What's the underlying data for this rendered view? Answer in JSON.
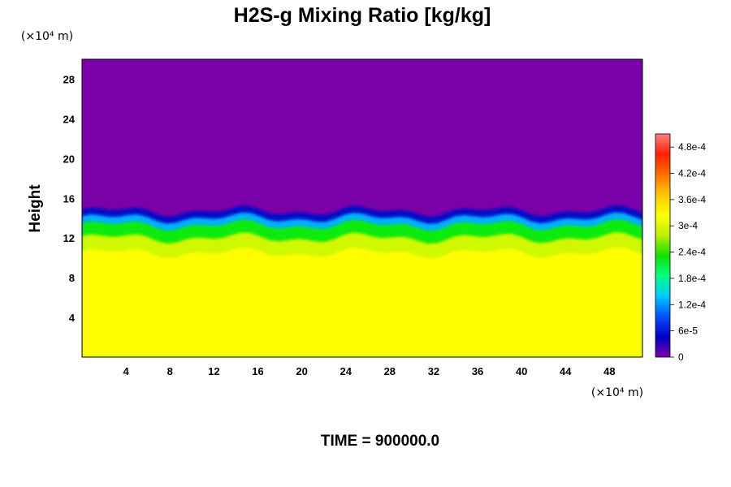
{
  "chart_data": {
    "type": "heatmap",
    "title": "H2S-g Mixing Ratio [kg/kg]",
    "ylabel": "Height",
    "x_unit": "(×10⁴ m)",
    "y_unit": "(×10⁴ m)",
    "xlim": [
      0,
      51
    ],
    "ylim": [
      0,
      30
    ],
    "x_ticks": [
      "4",
      "8",
      "12",
      "16",
      "20",
      "24",
      "28",
      "32",
      "36",
      "40",
      "44",
      "48"
    ],
    "y_ticks": [
      "4",
      "8",
      "12",
      "16",
      "20",
      "24",
      "28"
    ],
    "colorbar": {
      "range": [
        0,
        0.00051
      ],
      "tick_labels": [
        "0",
        "6e-5",
        "1.2e-4",
        "1.8e-4",
        "2.4e-4",
        "3e-4",
        "3.6e-4",
        "4.2e-4",
        "4.8e-4"
      ],
      "tick_values": [
        0,
        6e-05,
        0.00012,
        0.00018,
        0.00024,
        0.0003,
        0.00036,
        0.00042,
        0.00048
      ],
      "colors": [
        "#7a00a8",
        "#0000c8",
        "#0050ff",
        "#00c8ff",
        "#00ff80",
        "#10e000",
        "#b8f000",
        "#ffff00",
        "#ffc800",
        "#ff7000",
        "#ff2000",
        "#ff8080"
      ]
    },
    "field_layers": [
      {
        "height_range": [
          14.7,
          30
        ],
        "value": 0,
        "color": "#7a00a8"
      },
      {
        "height_range": [
          14.0,
          14.7
        ],
        "value": 6e-05,
        "color": "#0010c8"
      },
      {
        "height_range": [
          13.3,
          14.0
        ],
        "value": 0.00015,
        "color": "#00b0ff"
      },
      {
        "height_range": [
          12.0,
          13.3
        ],
        "value": 0.00027,
        "color": "#10ea10"
      },
      {
        "height_range": [
          10.5,
          12.0
        ],
        "value": 0.00033,
        "color": "#d0f800"
      },
      {
        "height_range": [
          0,
          10.5
        ],
        "value": 0.00037,
        "color": "#ffff00"
      }
    ],
    "time_label": "TIME = 900000.0"
  }
}
